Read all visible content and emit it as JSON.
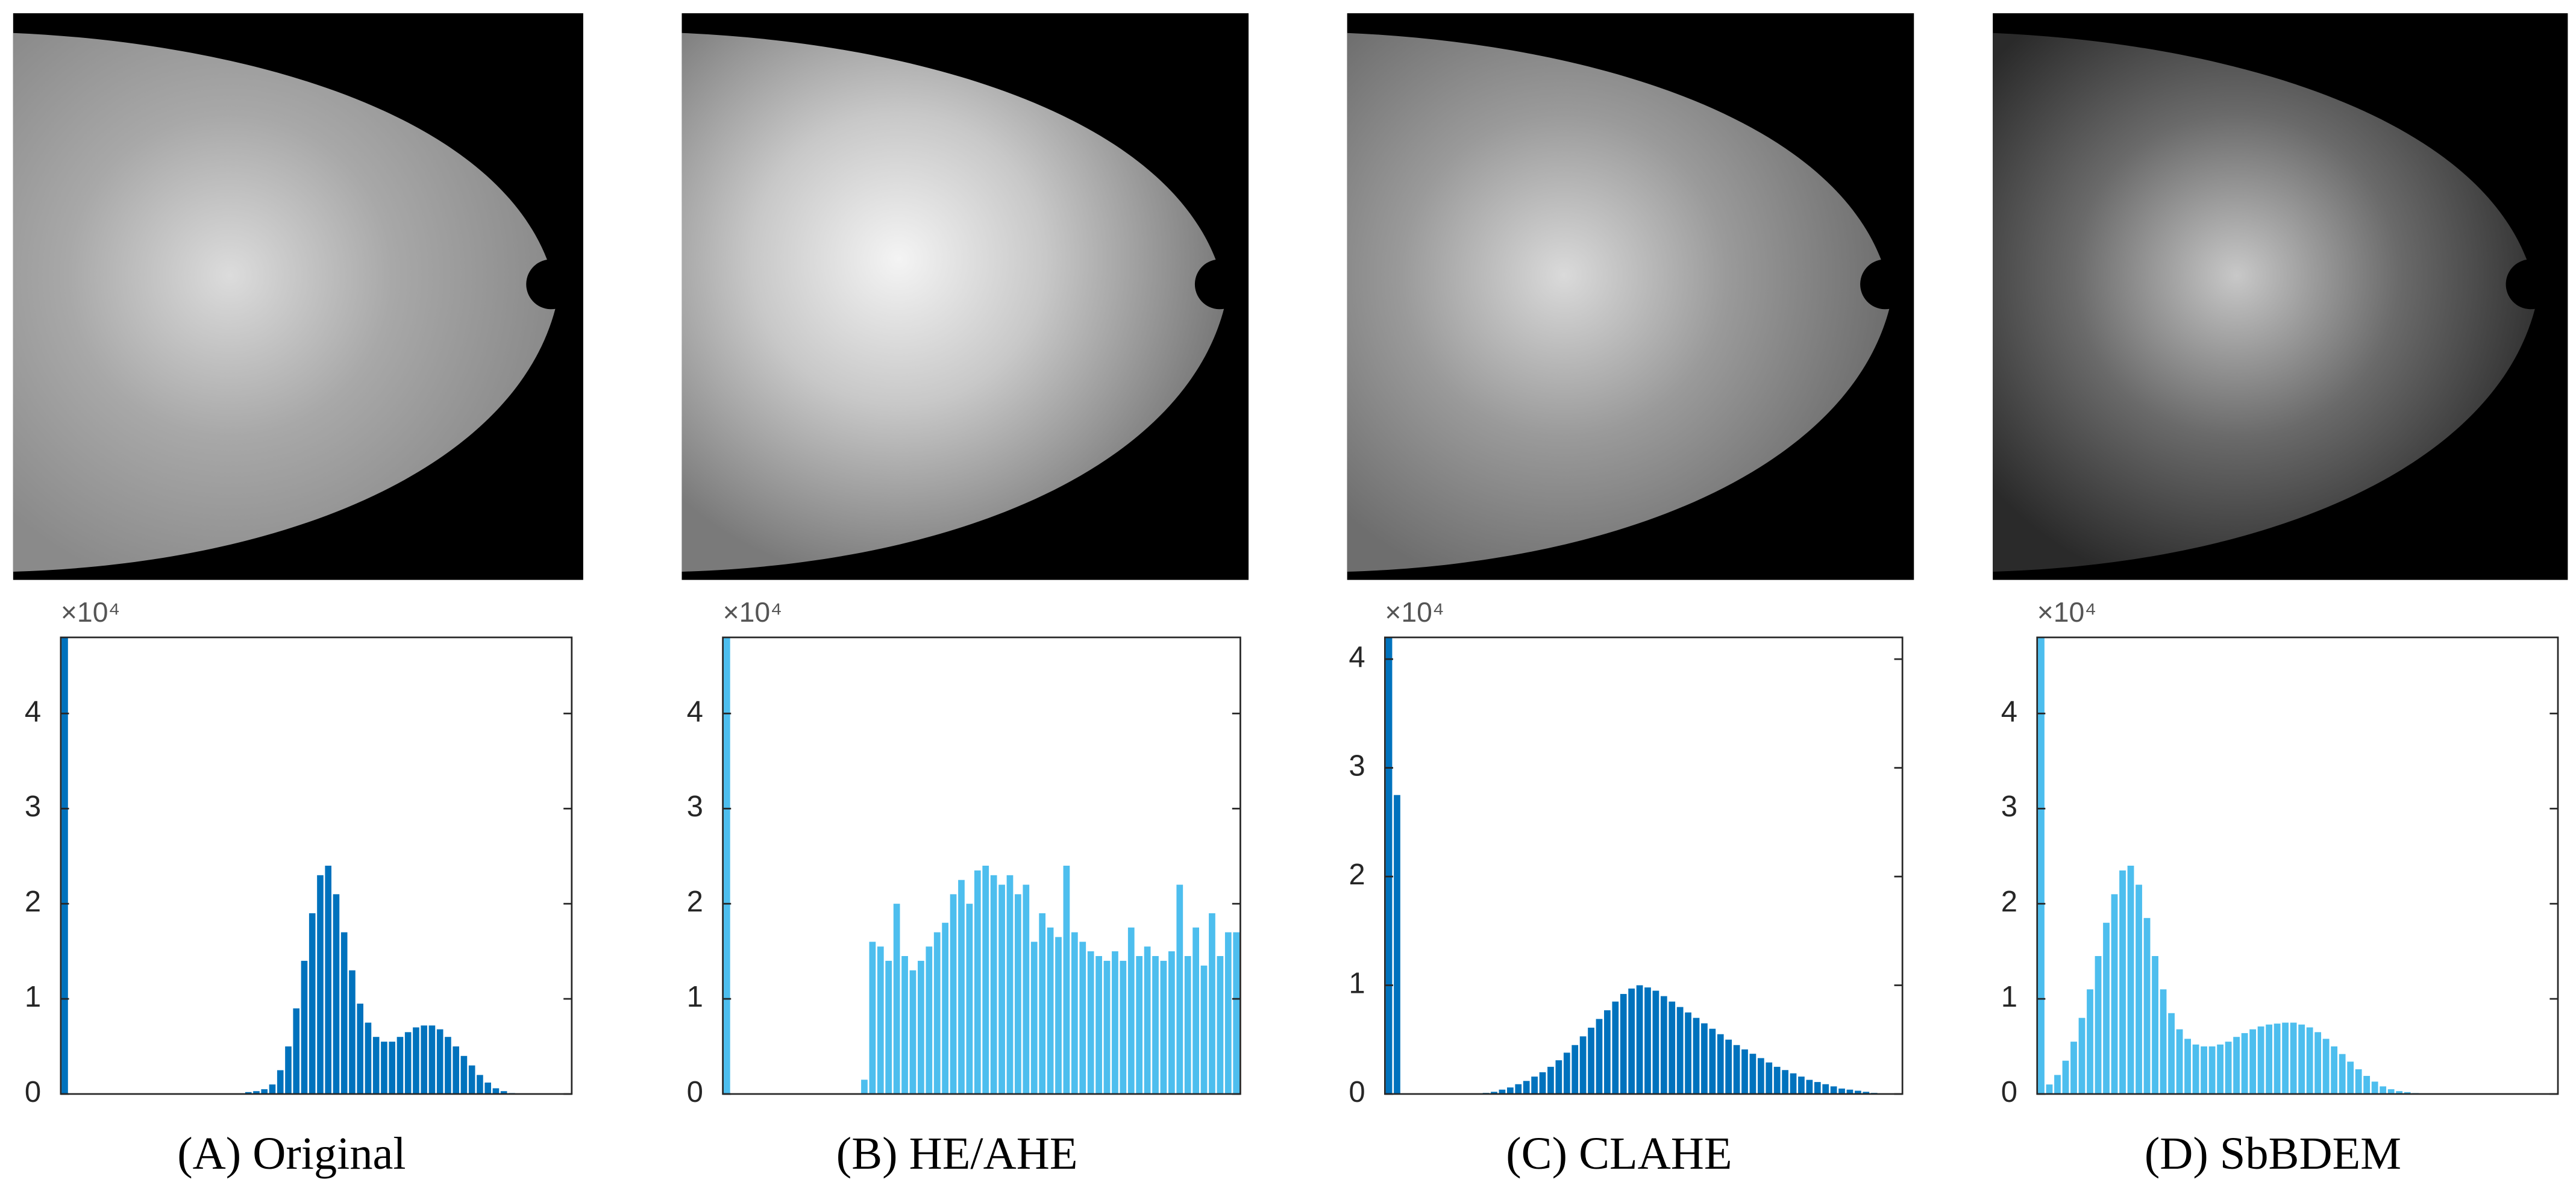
{
  "chart_data": [
    {
      "type": "histogram",
      "title": "(A) Original",
      "y_multiplier": "×10⁴",
      "color": "#0072bd",
      "bins": [
        0,
        4,
        8,
        12,
        16,
        20,
        24,
        28,
        32,
        36,
        40,
        44,
        48,
        52,
        56,
        60,
        64,
        68,
        72,
        76,
        80,
        84,
        88,
        92,
        96,
        100,
        104,
        108,
        112,
        116,
        120,
        124,
        128,
        132,
        136,
        140,
        144,
        148,
        152,
        156,
        160,
        164,
        168,
        172,
        176,
        180,
        184,
        188,
        192,
        196,
        200,
        204,
        208,
        212,
        216,
        220,
        224,
        228,
        232,
        236,
        240,
        244,
        248,
        252,
        256
      ],
      "values": [
        4.8,
        0,
        0,
        0,
        0,
        0,
        0,
        0,
        0,
        0,
        0,
        0,
        0,
        0,
        0,
        0,
        0,
        0,
        0,
        0,
        0,
        0,
        0,
        0.02,
        0.03,
        0.05,
        0.1,
        0.25,
        0.5,
        0.9,
        1.4,
        1.9,
        2.3,
        2.4,
        2.1,
        1.7,
        1.3,
        0.95,
        0.75,
        0.6,
        0.55,
        0.55,
        0.6,
        0.65,
        0.7,
        0.72,
        0.72,
        0.68,
        0.6,
        0.5,
        0.4,
        0.3,
        0.2,
        0.12,
        0.06,
        0.03,
        0.01,
        0,
        0,
        0,
        0,
        0,
        0,
        0
      ],
      "xlim": [
        0,
        256
      ],
      "ylim": [
        0,
        4.8
      ],
      "yticks": [
        0,
        1,
        2,
        3,
        4
      ]
    },
    {
      "type": "histogram",
      "title": "(B) HE/AHE",
      "y_multiplier": "×10⁴",
      "color": "#4dbeee",
      "bins": [
        0,
        4,
        8,
        12,
        16,
        20,
        24,
        28,
        32,
        36,
        40,
        44,
        48,
        52,
        56,
        60,
        64,
        68,
        72,
        76,
        80,
        84,
        88,
        92,
        96,
        100,
        104,
        108,
        112,
        116,
        120,
        124,
        128,
        132,
        136,
        140,
        144,
        148,
        152,
        156,
        160,
        164,
        168,
        172,
        176,
        180,
        184,
        188,
        192,
        196,
        200,
        204,
        208,
        212,
        216,
        220,
        224,
        228,
        232,
        236,
        240,
        244,
        248,
        252,
        256
      ],
      "values": [
        4.8,
        0,
        0,
        0,
        0,
        0,
        0,
        0,
        0,
        0,
        0,
        0,
        0,
        0,
        0,
        0,
        0,
        0.15,
        1.6,
        1.55,
        1.4,
        2.0,
        1.45,
        1.3,
        1.4,
        1.55,
        1.7,
        1.8,
        2.1,
        2.25,
        2.0,
        2.35,
        2.4,
        2.3,
        2.2,
        2.3,
        2.1,
        2.2,
        1.6,
        1.9,
        1.75,
        1.65,
        2.4,
        1.7,
        1.6,
        1.5,
        1.45,
        1.4,
        1.5,
        1.4,
        1.75,
        1.45,
        1.55,
        1.45,
        1.4,
        1.5,
        2.2,
        1.45,
        1.75,
        1.35,
        1.9,
        1.45,
        1.7,
        1.7
      ],
      "xlim": [
        0,
        256
      ],
      "ylim": [
        0,
        4.8
      ],
      "yticks": [
        0,
        1,
        2,
        3,
        4
      ]
    },
    {
      "type": "histogram",
      "title": "(C) CLAHE",
      "y_multiplier": "×10⁴",
      "color": "#0072bd",
      "bins": [
        0,
        4,
        8,
        12,
        16,
        20,
        24,
        28,
        32,
        36,
        40,
        44,
        48,
        52,
        56,
        60,
        64,
        68,
        72,
        76,
        80,
        84,
        88,
        92,
        96,
        100,
        104,
        108,
        112,
        116,
        120,
        124,
        128,
        132,
        136,
        140,
        144,
        148,
        152,
        156,
        160,
        164,
        168,
        172,
        176,
        180,
        184,
        188,
        192,
        196,
        200,
        204,
        208,
        212,
        216,
        220,
        224,
        228,
        232,
        236,
        240,
        244,
        248,
        252,
        256
      ],
      "values": [
        4.2,
        2.75,
        0,
        0,
        0,
        0,
        0,
        0,
        0,
        0,
        0,
        0,
        0.01,
        0.02,
        0.04,
        0.06,
        0.09,
        0.12,
        0.16,
        0.2,
        0.25,
        0.31,
        0.38,
        0.45,
        0.53,
        0.61,
        0.69,
        0.77,
        0.85,
        0.92,
        0.97,
        1.0,
        0.98,
        0.95,
        0.9,
        0.85,
        0.8,
        0.75,
        0.7,
        0.65,
        0.6,
        0.55,
        0.5,
        0.45,
        0.41,
        0.37,
        0.33,
        0.29,
        0.25,
        0.22,
        0.19,
        0.16,
        0.13,
        0.11,
        0.09,
        0.07,
        0.05,
        0.04,
        0.03,
        0.02,
        0.01,
        0.005,
        0,
        0
      ],
      "xlim": [
        0,
        256
      ],
      "ylim": [
        0,
        4.2
      ],
      "yticks": [
        0,
        1,
        2,
        3,
        4
      ]
    },
    {
      "type": "histogram",
      "title": "(D) SbBDEM",
      "y_multiplier": "×10⁴",
      "color": "#4dbeee",
      "bins": [
        0,
        4,
        8,
        12,
        16,
        20,
        24,
        28,
        32,
        36,
        40,
        44,
        48,
        52,
        56,
        60,
        64,
        68,
        72,
        76,
        80,
        84,
        88,
        92,
        96,
        100,
        104,
        108,
        112,
        116,
        120,
        124,
        128,
        132,
        136,
        140,
        144,
        148,
        152,
        156,
        160,
        164,
        168,
        172,
        176,
        180,
        184,
        188,
        192,
        196,
        200,
        204,
        208,
        212,
        216,
        220,
        224,
        228,
        232,
        236,
        240,
        244,
        248,
        252,
        256
      ],
      "values": [
        4.8,
        0.1,
        0.2,
        0.35,
        0.55,
        0.8,
        1.1,
        1.45,
        1.8,
        2.1,
        2.35,
        2.4,
        2.2,
        1.85,
        1.45,
        1.1,
        0.85,
        0.68,
        0.58,
        0.52,
        0.5,
        0.5,
        0.52,
        0.55,
        0.6,
        0.64,
        0.68,
        0.71,
        0.73,
        0.74,
        0.75,
        0.75,
        0.73,
        0.7,
        0.65,
        0.58,
        0.5,
        0.42,
        0.34,
        0.26,
        0.19,
        0.13,
        0.08,
        0.05,
        0.03,
        0.02,
        0.01,
        0,
        0,
        0,
        0,
        0,
        0,
        0,
        0,
        0,
        0,
        0,
        0,
        0,
        0,
        0,
        0,
        0
      ],
      "xlim": [
        0,
        256
      ],
      "ylim": [
        0,
        4.8
      ],
      "yticks": [
        0,
        1,
        2,
        3,
        4
      ]
    }
  ]
}
